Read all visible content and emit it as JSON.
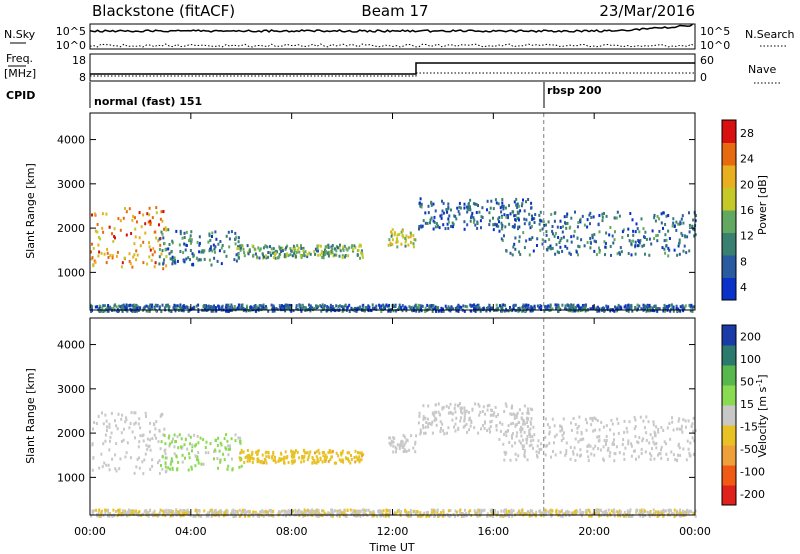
{
  "header": {
    "station": "Blackstone (fitACF)",
    "beam": "Beam 17",
    "date": "23/Mar/2016"
  },
  "top_panels": {
    "noise": {
      "left_label": "N.Sky",
      "right_label": "N.Search",
      "left_ticks": [
        "10^5",
        "10^0"
      ],
      "right_ticks": [
        "10^5",
        "10^0"
      ]
    },
    "freq": {
      "left_label_1": "Freq.",
      "left_label_2": "[MHz]",
      "left_ticks": [
        "18",
        "8"
      ],
      "right_label": "Nave",
      "right_ticks": [
        "60",
        "0"
      ]
    },
    "cpid": {
      "label": "CPID",
      "segments": [
        {
          "name": "normal (fast) 151",
          "start_hour": 0
        },
        {
          "name": "rbsp 200",
          "start_hour": 18
        }
      ]
    }
  },
  "colors": {
    "power_scale": [
      "#0a32c8",
      "#2a5aa0",
      "#3a8070",
      "#62a860",
      "#c4c828",
      "#e8b020",
      "#e86a10",
      "#d81010"
    ],
    "velocity_scale": [
      "#1a3aa8",
      "#2c7a6e",
      "#58b84e",
      "#8ada52",
      "#c8c8c8",
      "#e8c224",
      "#f0a03a",
      "#f05a14",
      "#e0201a"
    ],
    "cpid_marker": "#808080"
  },
  "chart_data": [
    {
      "type": "heatmap",
      "panel": "power",
      "ylabel": "Slant Range [km]",
      "yticks": [
        1000,
        2000,
        3000,
        4000
      ],
      "ylim": [
        150,
        4600
      ],
      "xlim": [
        0,
        24
      ],
      "colorbar": {
        "label": "Power [dB]",
        "ticks": [
          "28",
          "24",
          "20",
          "16",
          "12",
          "8",
          "4"
        ],
        "range": [
          0,
          30
        ]
      },
      "echo_regions": [
        {
          "hours": [
            0.0,
            3.0
          ],
          "range_km": [
            1100,
            2500
          ],
          "power_db": 22
        },
        {
          "hours": [
            2.7,
            6.0
          ],
          "range_km": [
            1200,
            2000
          ],
          "power_db": 8
        },
        {
          "hours": [
            5.8,
            10.8
          ],
          "range_km": [
            1350,
            1650
          ],
          "power_db": 12
        },
        {
          "hours": [
            11.8,
            12.9
          ],
          "range_km": [
            1600,
            2000
          ],
          "power_db": 16
        },
        {
          "hours": [
            13.0,
            17.5
          ],
          "range_km": [
            2000,
            2700
          ],
          "power_db": 6
        },
        {
          "hours": [
            16.2,
            24.0
          ],
          "range_km": [
            1400,
            2400
          ],
          "power_db": 8
        },
        {
          "hours": [
            0.0,
            24.0
          ],
          "range_km": [
            150,
            300
          ],
          "power_db": 6
        }
      ]
    },
    {
      "type": "heatmap",
      "panel": "velocity",
      "ylabel": "Slant Range [km]",
      "yticks": [
        1000,
        2000,
        3000,
        4000
      ],
      "ylim": [
        150,
        4600
      ],
      "xlim": [
        0,
        24
      ],
      "xlabel": "Time UT",
      "xticks": [
        "00:00",
        "04:00",
        "08:00",
        "12:00",
        "16:00",
        "20:00",
        "00:00"
      ],
      "colorbar": {
        "label": "Velocity [m s^-1]",
        "ticks": [
          "200",
          "100",
          "50",
          "15",
          "-15",
          "-50",
          "-100",
          "-200"
        ],
        "range": [
          -250,
          250
        ]
      },
      "echo_regions": [
        {
          "hours": [
            0.0,
            3.0
          ],
          "range_km": [
            1100,
            2500
          ],
          "velocity_ms": 0
        },
        {
          "hours": [
            2.7,
            6.0
          ],
          "range_km": [
            1200,
            2000
          ],
          "velocity_ms": 40
        },
        {
          "hours": [
            5.8,
            10.8
          ],
          "range_km": [
            1350,
            1650
          ],
          "velocity_ms": -60
        },
        {
          "hours": [
            11.8,
            12.9
          ],
          "range_km": [
            1600,
            2000
          ],
          "velocity_ms": 0
        },
        {
          "hours": [
            13.0,
            17.5
          ],
          "range_km": [
            2000,
            2700
          ],
          "velocity_ms": 0
        },
        {
          "hours": [
            16.2,
            24.0
          ],
          "range_km": [
            1400,
            2400
          ],
          "velocity_ms": 0
        },
        {
          "hours": [
            0.0,
            24.0
          ],
          "range_km": [
            150,
            300
          ],
          "velocity_ms": -20
        }
      ]
    }
  ]
}
